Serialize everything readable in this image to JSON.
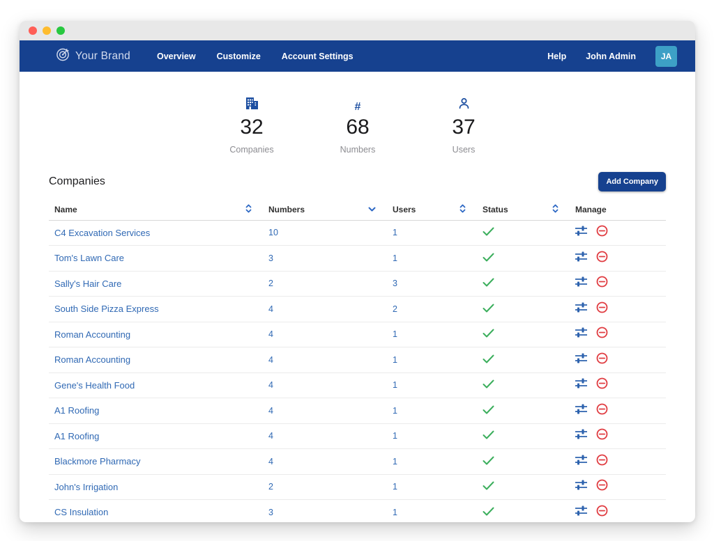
{
  "titlebar": {
    "traffic_lights": [
      "close",
      "minimize",
      "zoom"
    ]
  },
  "navbar": {
    "brand": {
      "icon": "target-logo-icon",
      "name": "Your Brand"
    },
    "links": [
      "Overview",
      "Customize",
      "Account Settings"
    ],
    "help_label": "Help",
    "user_name": "John Admin",
    "avatar_initials": "JA"
  },
  "stats": [
    {
      "icon": "building-icon",
      "value": "32",
      "label": "Companies"
    },
    {
      "icon": "hash-icon",
      "value": "68",
      "label": "Numbers"
    },
    {
      "icon": "person-icon",
      "value": "37",
      "label": "Users"
    }
  ],
  "companies": {
    "title": "Companies",
    "add_button_label": "Add Company",
    "table": {
      "columns": [
        {
          "label": "Name",
          "sort_icon": "sort-both-icon"
        },
        {
          "label": "Numbers",
          "sort_icon": "sort-down-icon"
        },
        {
          "label": "Users",
          "sort_icon": "sort-both-icon"
        },
        {
          "label": "Status",
          "sort_icon": "sort-both-icon"
        },
        {
          "label": "Manage",
          "sort_icon": "none"
        }
      ],
      "rows": [
        {
          "name": "C4 Excavation Services",
          "numbers": "10",
          "users": "1",
          "status_icon": "check-icon",
          "manage": [
            "sliders-icon",
            "remove-icon"
          ]
        },
        {
          "name": "Tom's Lawn Care",
          "numbers": "3",
          "users": "1",
          "status_icon": "check-icon",
          "manage": [
            "sliders-icon",
            "remove-icon"
          ]
        },
        {
          "name": "Sally's Hair Care",
          "numbers": "2",
          "users": "3",
          "status_icon": "check-icon",
          "manage": [
            "sliders-icon",
            "remove-icon"
          ]
        },
        {
          "name": "South Side Pizza Express",
          "numbers": "4",
          "users": "2",
          "status_icon": "check-icon",
          "manage": [
            "sliders-icon",
            "remove-icon"
          ]
        },
        {
          "name": "Roman Accounting",
          "numbers": "4",
          "users": "1",
          "status_icon": "check-icon",
          "manage": [
            "sliders-icon",
            "remove-icon"
          ]
        },
        {
          "name": "Roman Accounting",
          "numbers": "4",
          "users": "1",
          "status_icon": "check-icon",
          "manage": [
            "sliders-icon",
            "remove-icon"
          ]
        },
        {
          "name": "Gene's Health Food",
          "numbers": "4",
          "users": "1",
          "status_icon": "check-icon",
          "manage": [
            "sliders-icon",
            "remove-icon"
          ]
        },
        {
          "name": "A1 Roofing",
          "numbers": "4",
          "users": "1",
          "status_icon": "check-icon",
          "manage": [
            "sliders-icon",
            "remove-icon"
          ]
        },
        {
          "name": "A1 Roofing",
          "numbers": "4",
          "users": "1",
          "status_icon": "check-icon",
          "manage": [
            "sliders-icon",
            "remove-icon"
          ]
        },
        {
          "name": "Blackmore Pharmacy",
          "numbers": "4",
          "users": "1",
          "status_icon": "check-icon",
          "manage": [
            "sliders-icon",
            "remove-icon"
          ]
        },
        {
          "name": "John's Irrigation",
          "numbers": "2",
          "users": "1",
          "status_icon": "check-icon",
          "manage": [
            "sliders-icon",
            "remove-icon"
          ]
        },
        {
          "name": "CS Insulation",
          "numbers": "3",
          "users": "1",
          "status_icon": "check-icon",
          "manage": [
            "sliders-icon",
            "remove-icon"
          ]
        }
      ]
    }
  },
  "icons": {
    "hash-icon": {
      "glyph": "#"
    }
  },
  "colors": {
    "navbar_blue": "#16418F",
    "stat_icon_blue": "#1D4FA1",
    "link_blue": "#3069B4",
    "sort_icon_blue": "#2D68C4",
    "status_green": "#3BAE5C",
    "remove_red": "#E03C41",
    "avatar_blue": "#3DA0C6",
    "titlebar_gray": "#E8E8E8"
  }
}
